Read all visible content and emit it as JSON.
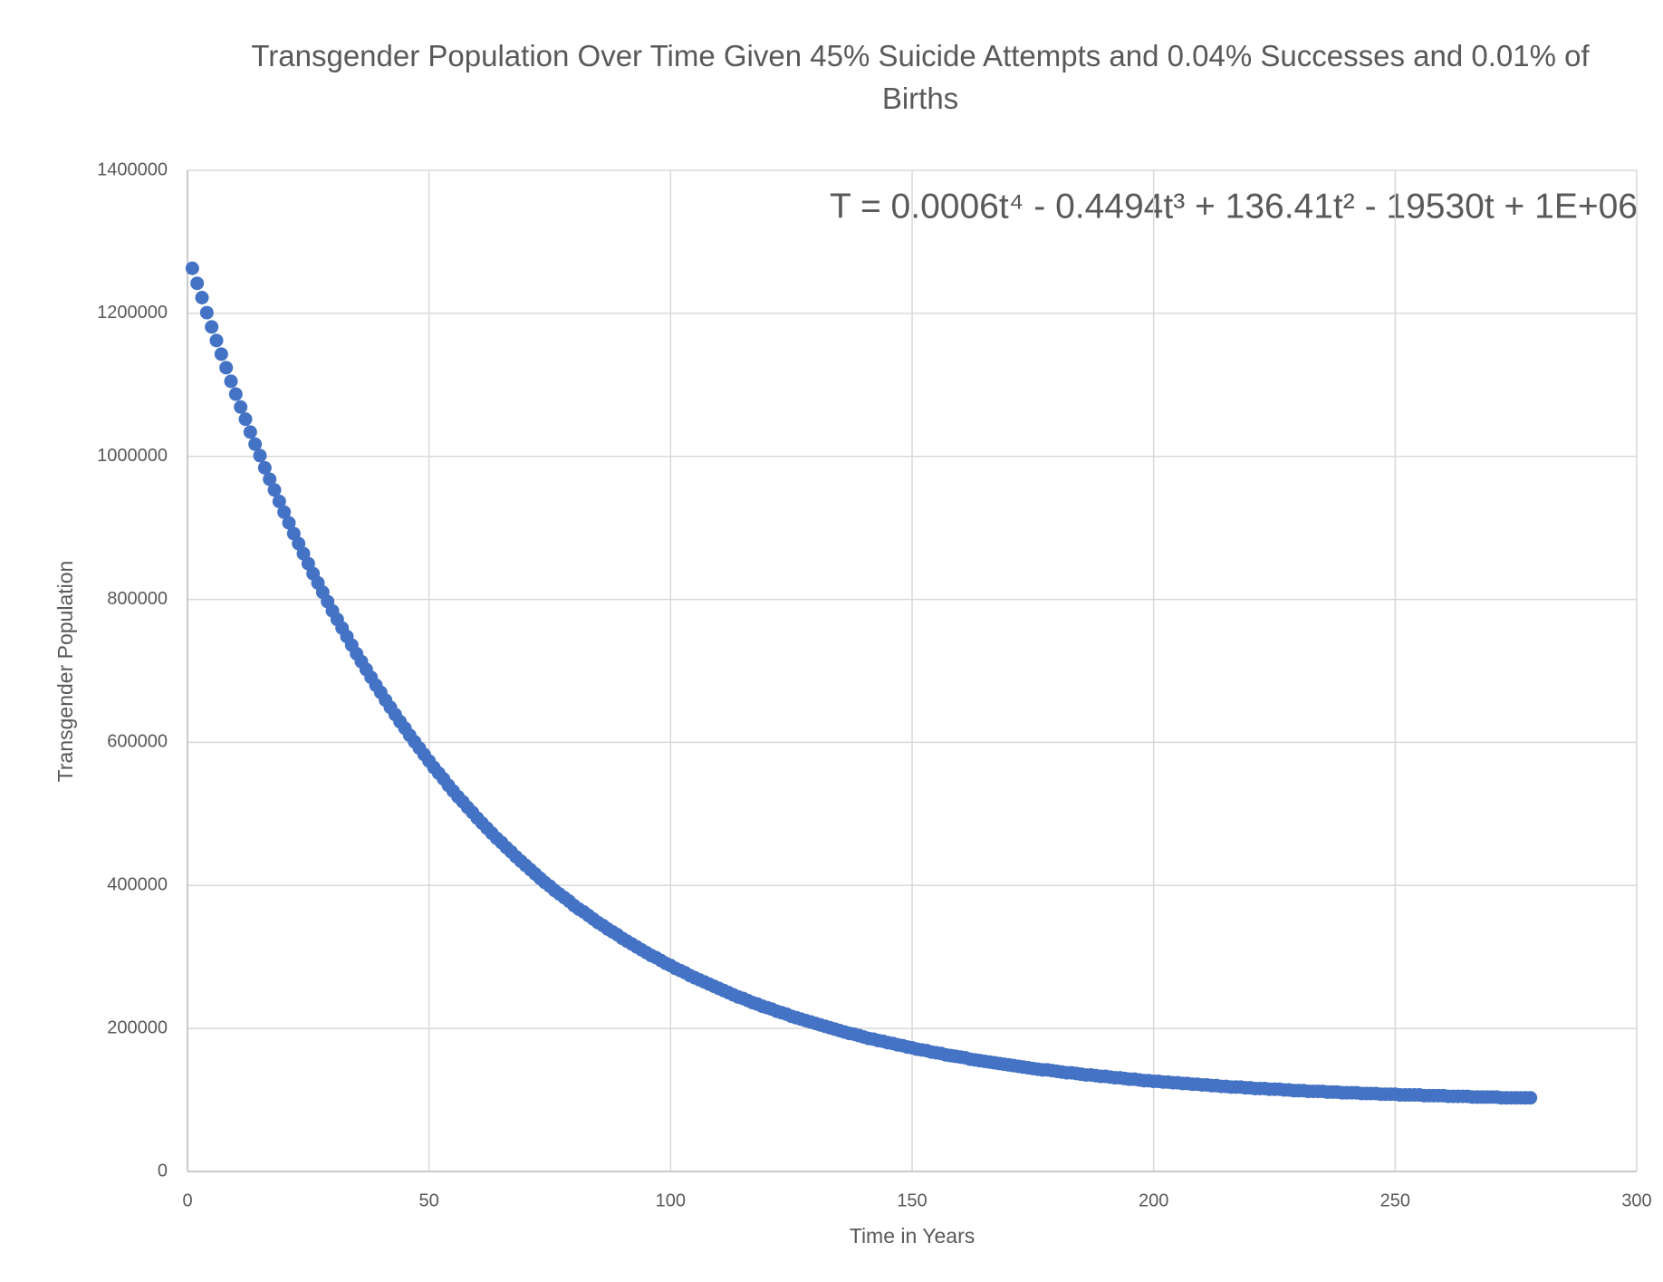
{
  "chart_data": {
    "type": "scatter",
    "title": "Transgender Population Over Time Given 45% Suicide Attempts and 0.04% Successes and 0.01% of Births",
    "annotation": "T = 0.0006t⁴ - 0.4494t³ + 136.41t² - 19530t + 1E+06",
    "x_label": "Time in Years",
    "y_label": "Transgender Population",
    "color": "#4472c4",
    "grid": true,
    "xlim": [
      0,
      300
    ],
    "xticks": [
      0,
      50,
      100,
      150,
      200,
      250,
      300
    ],
    "ylim": [
      0,
      1400000
    ],
    "yticks": [
      0,
      200000,
      400000,
      600000,
      800000,
      1000000,
      1200000,
      1400000
    ],
    "x": [
      1,
      2,
      3,
      4,
      5,
      6,
      7,
      8,
      9,
      10,
      11,
      12,
      13,
      14,
      15,
      16,
      17,
      18,
      19,
      20,
      21,
      22,
      23,
      24,
      25,
      26,
      27,
      28,
      29,
      30,
      31,
      32,
      33,
      34,
      35,
      36,
      37,
      38,
      39,
      40,
      41,
      42,
      43,
      44,
      45,
      46,
      47,
      48,
      49,
      50,
      51,
      52,
      53,
      54,
      55,
      56,
      57,
      58,
      59,
      60,
      61,
      62,
      63,
      64,
      65,
      66,
      67,
      68,
      69,
      70,
      71,
      72,
      73,
      74,
      75,
      76,
      77,
      78,
      79,
      80,
      81,
      82,
      83,
      84,
      85,
      86,
      87,
      88,
      89,
      90,
      91,
      92,
      93,
      94,
      95,
      96,
      97,
      98,
      99,
      100,
      101,
      102,
      103,
      104,
      105,
      106,
      107,
      108,
      109,
      110,
      111,
      112,
      113,
      114,
      115,
      116,
      117,
      118,
      119,
      120,
      121,
      122,
      123,
      124,
      125,
      126,
      127,
      128,
      129,
      130,
      131,
      132,
      133,
      134,
      135,
      136,
      137,
      138,
      139,
      140,
      141,
      142,
      143,
      144,
      145,
      146,
      147,
      148,
      149,
      150,
      151,
      152,
      153,
      154,
      155,
      156,
      157,
      158,
      159,
      160,
      161,
      162,
      163,
      164,
      165,
      166,
      167,
      168,
      169,
      170,
      171,
      172,
      173,
      174,
      175,
      176,
      177,
      178,
      179,
      180,
      181,
      182,
      183,
      184,
      185,
      186,
      187,
      188,
      189,
      190,
      191,
      192,
      193,
      194,
      195,
      196,
      197,
      198,
      199,
      200,
      201,
      202,
      203,
      204,
      205,
      206,
      207,
      208,
      209,
      210,
      211,
      212,
      213,
      214,
      215,
      216,
      217,
      218,
      219,
      220,
      221,
      222,
      223,
      224,
      225,
      226,
      227,
      228,
      229,
      230,
      231,
      232,
      233,
      234,
      235,
      236,
      237,
      238,
      239,
      240,
      241,
      242,
      243,
      244,
      245,
      246,
      247,
      248,
      249,
      250,
      251,
      252,
      253,
      254,
      255,
      256,
      257,
      258,
      259,
      260,
      261,
      262,
      263,
      264,
      265,
      266,
      267,
      268,
      269,
      270,
      271,
      272,
      273,
      274,
      275,
      276,
      277,
      278
    ],
    "values": [
      1263000,
      1242000,
      1222000,
      1201000,
      1181000,
      1162000,
      1143000,
      1124000,
      1105000,
      1087000,
      1069000,
      1052000,
      1034000,
      1017000,
      1001000,
      984000,
      968000,
      953000,
      937000,
      922000,
      907000,
      892000,
      878000,
      864000,
      850000,
      836000,
      823000,
      810000,
      797000,
      784000,
      772000,
      760000,
      748000,
      736000,
      724000,
      713000,
      702000,
      691000,
      680000,
      670000,
      659000,
      649000,
      639000,
      629000,
      620000,
      610000,
      601000,
      592000,
      583000,
      574000,
      565000,
      557000,
      549000,
      540000,
      532000,
      524000,
      517000,
      509000,
      502000,
      494000,
      487000,
      480000,
      473000,
      466000,
      460000,
      453000,
      447000,
      440000,
      434000,
      428000,
      422000,
      416000,
      410000,
      404000,
      399000,
      393000,
      388000,
      383000,
      378000,
      372000,
      367000,
      363000,
      358000,
      353000,
      348000,
      344000,
      339000,
      335000,
      331000,
      326000,
      322000,
      318000,
      314000,
      310000,
      306000,
      302000,
      299000,
      295000,
      291000,
      288000,
      284000,
      281000,
      278000,
      274000,
      271000,
      268000,
      265000,
      262000,
      259000,
      256000,
      253000,
      250000,
      247000,
      244000,
      242000,
      239000,
      236000,
      234000,
      231000,
      229000,
      227000,
      224000,
      222000,
      220000,
      217000,
      215000,
      213000,
      211000,
      209000,
      207000,
      205000,
      203000,
      201000,
      199000,
      197000,
      195000,
      193000,
      192000,
      190000,
      188000,
      186000,
      185000,
      183000,
      182000,
      180000,
      179000,
      177000,
      176000,
      174000,
      173000,
      171000,
      170000,
      169000,
      167000,
      166000,
      165000,
      163000,
      162000,
      161000,
      160000,
      159000,
      157000,
      156000,
      155000,
      154000,
      153000,
      152000,
      151000,
      150000,
      149000,
      148000,
      147000,
      146000,
      145000,
      144000,
      143000,
      142000,
      142000,
      141000,
      140000,
      139000,
      138000,
      138000,
      137000,
      136000,
      135000,
      135000,
      134000,
      133000,
      133000,
      132000,
      131000,
      131000,
      130000,
      129000,
      129000,
      128000,
      127000,
      127000,
      126000,
      126000,
      125000,
      125000,
      124000,
      124000,
      123000,
      123000,
      122000,
      122000,
      121000,
      121000,
      120000,
      120000,
      119000,
      119000,
      118000,
      118000,
      118000,
      117000,
      117000,
      116000,
      116000,
      116000,
      115000,
      115000,
      115000,
      114000,
      114000,
      113000,
      113000,
      113000,
      112000,
      112000,
      112000,
      112000,
      111000,
      111000,
      111000,
      110000,
      110000,
      110000,
      110000,
      109000,
      109000,
      109000,
      109000,
      108000,
      108000,
      108000,
      108000,
      107000,
      107000,
      107000,
      107000,
      107000,
      106000,
      106000,
      106000,
      106000,
      106000,
      105000,
      105000,
      105000,
      105000,
      105000,
      104000,
      104000,
      104000,
      104000,
      104000,
      104000,
      103000,
      103000,
      103000,
      103000,
      103000,
      103000,
      103000
    ]
  }
}
